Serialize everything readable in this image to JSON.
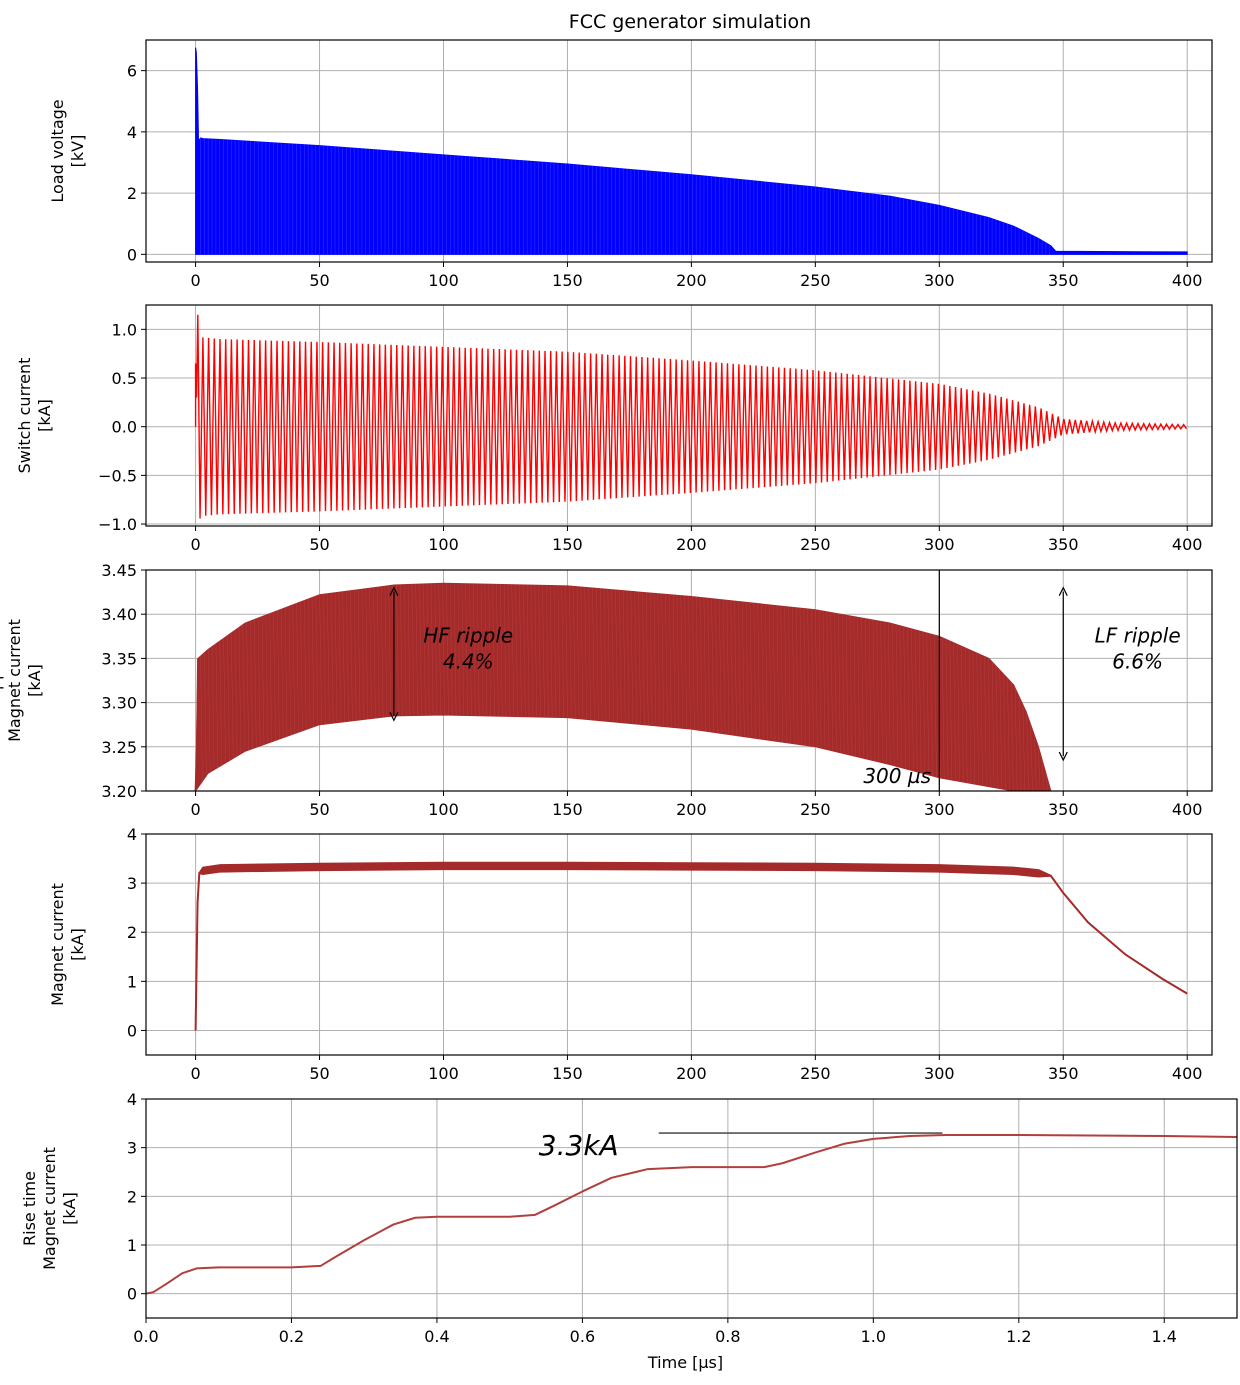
{
  "figure": {
    "title": "FCC generator simulation"
  },
  "chart_data": [
    {
      "type": "line",
      "ylabel_lines": [
        "Load voltage",
        "[kV]"
      ],
      "xlim": [
        -20,
        410
      ],
      "ylim": [
        -0.25,
        7.0
      ],
      "xticks": [
        0,
        50,
        100,
        150,
        200,
        250,
        300,
        350,
        400
      ],
      "yticks": [
        0,
        2,
        4,
        6
      ],
      "grid": true,
      "series": [
        {
          "color": "#0000ff",
          "fill": true,
          "x": [
            0,
            0.3,
            0.8,
            1.2,
            1.6,
            2,
            3,
            10,
            50,
            100,
            150,
            200,
            250,
            280,
            300,
            320,
            330,
            340,
            345,
            347,
            400
          ],
          "y": [
            6.75,
            6.6,
            5.4,
            3.65,
            3.75,
            3.8,
            3.78,
            3.75,
            3.55,
            3.25,
            2.95,
            2.6,
            2.2,
            1.9,
            1.6,
            1.2,
            0.92,
            0.52,
            0.28,
            0.1,
            0.08
          ]
        }
      ]
    },
    {
      "type": "line",
      "ylabel_lines": [
        "Switch current",
        "[kA]"
      ],
      "xlim": [
        -20,
        410
      ],
      "ylim": [
        -1.02,
        1.25
      ],
      "xticks": [
        0,
        50,
        100,
        150,
        200,
        250,
        300,
        350,
        400
      ],
      "yticks": [
        -1.0,
        -0.5,
        0.0,
        0.5,
        1.0
      ],
      "grid": true,
      "series": [
        {
          "color": "#ff0000",
          "oscillation": true,
          "period": 2.3,
          "x": [
            0,
            2,
            10,
            50,
            100,
            150,
            200,
            250,
            300,
            320,
            340,
            350,
            370,
            400
          ],
          "y": [
            1.15,
            0.92,
            0.9,
            0.87,
            0.82,
            0.77,
            0.68,
            0.58,
            0.44,
            0.34,
            0.2,
            0.08,
            0.04,
            0.02
          ]
        }
      ]
    },
    {
      "type": "line",
      "ylabel_lines": [
        "Ripple",
        "Magnet current",
        "[kA]"
      ],
      "xlim": [
        -20,
        410
      ],
      "ylim": [
        3.2,
        3.45
      ],
      "xticks": [
        0,
        50,
        100,
        150,
        200,
        250,
        300,
        350,
        400
      ],
      "yticks": [
        3.2,
        3.25,
        3.3,
        3.35,
        3.4,
        3.45
      ],
      "grid": true,
      "series": [
        {
          "name": "upper",
          "color": "#a52a2a",
          "x": [
            1,
            5,
            20,
            50,
            80,
            100,
            150,
            200,
            250,
            280,
            300,
            320,
            330,
            335,
            340,
            345
          ],
          "y": [
            3.35,
            3.36,
            3.39,
            3.422,
            3.433,
            3.435,
            3.432,
            3.42,
            3.405,
            3.39,
            3.375,
            3.35,
            3.32,
            3.29,
            3.25,
            3.2
          ]
        },
        {
          "name": "lower",
          "color": "#a52a2a",
          "x": [
            0,
            5,
            20,
            50,
            80,
            100,
            150,
            200,
            250,
            280,
            300,
            320,
            330
          ],
          "y": [
            3.2,
            3.22,
            3.245,
            3.275,
            3.285,
            3.286,
            3.283,
            3.27,
            3.25,
            3.23,
            3.215,
            3.205,
            3.2
          ]
        }
      ],
      "annotations": [
        {
          "text_lines": [
            "HF ripple",
            "4.4%"
          ],
          "x": 110,
          "y": 3.36
        },
        {
          "text_lines": [
            "LF ripple",
            "6.6%"
          ],
          "x": 380,
          "y": 3.36
        },
        {
          "text": "300 µs",
          "x": 283,
          "y": 3.217
        }
      ],
      "arrows": [
        {
          "x": 80,
          "y1": 3.43,
          "y2": 3.28
        },
        {
          "x": 350,
          "y1": 3.43,
          "y2": 3.235
        }
      ],
      "vline": {
        "x": 300,
        "y1": 3.2,
        "y2": 3.45
      }
    },
    {
      "type": "line",
      "ylabel_lines": [
        "Magnet current",
        "[kA]"
      ],
      "xlim": [
        -20,
        410
      ],
      "ylim": [
        -0.5,
        4.0
      ],
      "xticks": [
        0,
        50,
        100,
        150,
        200,
        250,
        300,
        350,
        400
      ],
      "yticks": [
        0,
        1,
        2,
        3,
        4
      ],
      "grid": true,
      "series": [
        {
          "color": "#a52a2a",
          "band": 0.13,
          "x": [
            0,
            0.8,
            1.5,
            3,
            10,
            50,
            100,
            150,
            200,
            250,
            300,
            330,
            340,
            345,
            350,
            360,
            375,
            390,
            400
          ],
          "y": [
            0,
            2.6,
            3.2,
            3.25,
            3.3,
            3.33,
            3.35,
            3.35,
            3.34,
            3.33,
            3.3,
            3.25,
            3.2,
            3.15,
            2.8,
            2.2,
            1.55,
            1.05,
            0.75
          ]
        }
      ]
    },
    {
      "type": "line",
      "ylabel_lines": [
        "Rise time",
        "Magnet current",
        "[kA]"
      ],
      "xlabel": "Time [µs]",
      "xlim": [
        0,
        1.5
      ],
      "ylim": [
        -0.5,
        4.0
      ],
      "xticks": [
        0.0,
        0.2,
        0.4,
        0.6,
        0.8,
        1.0,
        1.2,
        1.4
      ],
      "yticks": [
        0,
        1,
        2,
        3,
        4
      ],
      "grid": true,
      "series": [
        {
          "color": "#b0403e",
          "x": [
            0,
            0.01,
            0.03,
            0.05,
            0.07,
            0.1,
            0.2,
            0.24,
            0.26,
            0.3,
            0.34,
            0.37,
            0.4,
            0.5,
            0.535,
            0.56,
            0.6,
            0.64,
            0.69,
            0.75,
            0.85,
            0.875,
            0.92,
            0.96,
            1.0,
            1.05,
            1.1,
            1.2,
            1.3,
            1.4,
            1.5
          ],
          "y": [
            0,
            0.03,
            0.22,
            0.42,
            0.52,
            0.54,
            0.54,
            0.57,
            0.75,
            1.1,
            1.42,
            1.56,
            1.58,
            1.58,
            1.62,
            1.8,
            2.1,
            2.38,
            2.56,
            2.6,
            2.6,
            2.68,
            2.9,
            3.08,
            3.18,
            3.24,
            3.26,
            3.26,
            3.25,
            3.24,
            3.22
          ]
        }
      ],
      "annotations": [
        {
          "text": "3.3kA",
          "x": 0.595,
          "y": 3.1,
          "large": true
        }
      ],
      "hline": {
        "y": 3.3,
        "x1": 0.705,
        "x2": 1.095
      }
    }
  ]
}
